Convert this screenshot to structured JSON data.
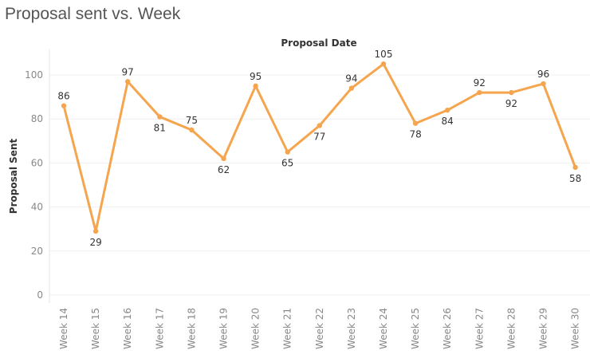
{
  "title": "Proposal sent vs. Week",
  "chart_data": {
    "type": "line",
    "title": "Proposal sent vs. Week",
    "xlabel": "Proposal Date",
    "ylabel": "Proposal Sent",
    "categories": [
      "Week 14",
      "Week 15",
      "Week 16",
      "Week 17",
      "Week 18",
      "Week 19",
      "Week 20",
      "Week 21",
      "Week 22",
      "Week 23",
      "Week 24",
      "Week 25",
      "Week 26",
      "Week 27",
      "Week 28",
      "Week 29",
      "Week 30"
    ],
    "series": [
      {
        "values": [
          86,
          29,
          97,
          81,
          75,
          62,
          95,
          65,
          77,
          94,
          105,
          78,
          84,
          92,
          92,
          96,
          58
        ]
      }
    ],
    "label_position": [
      "above",
      "below",
      "above",
      "below",
      "above",
      "below",
      "above",
      "below",
      "below",
      "above",
      "above",
      "below",
      "below",
      "above",
      "below",
      "above",
      "below"
    ],
    "ylim": [
      0,
      110
    ],
    "yticks": [
      0,
      20,
      40,
      60,
      80,
      100
    ],
    "grid": true,
    "line_color": "#F5A54E"
  }
}
